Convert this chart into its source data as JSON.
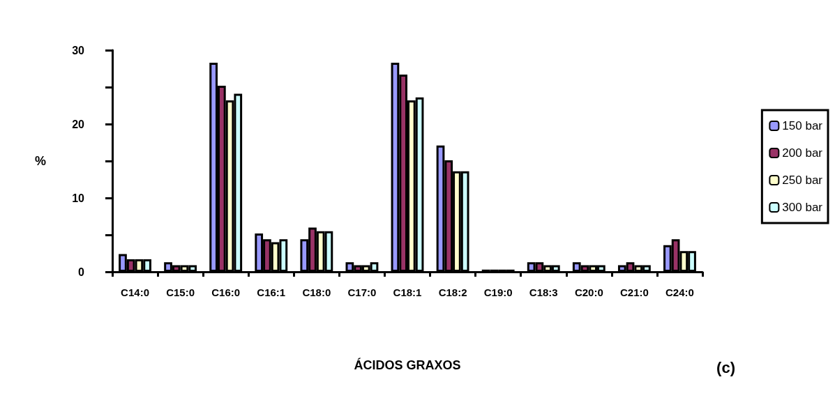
{
  "chart_data": {
    "type": "bar",
    "xlabel": "ÁCIDOS GRAXOS",
    "ylabel": "%",
    "annotations": [
      "(c)"
    ],
    "categories": [
      "C14:0",
      "C15:0",
      "C16:0",
      "C16:1",
      "C18:0",
      "C17:0",
      "C18:1",
      "C18:2",
      "C19:0",
      "C18:3",
      "C20:0",
      "C21:0",
      "C24:0"
    ],
    "series": [
      {
        "name": "150 bar",
        "color": "#9999ff",
        "values": [
          2.4,
          1.3,
          28.3,
          5.2,
          4.4,
          1.3,
          28.3,
          17.1,
          0.3,
          1.3,
          1.3,
          0.9,
          3.6
        ]
      },
      {
        "name": "200 bar",
        "color": "#993366",
        "values": [
          1.7,
          0.9,
          25.2,
          4.4,
          6.0,
          0.9,
          26.7,
          15.1,
          0.3,
          1.3,
          0.9,
          1.3,
          4.4
        ]
      },
      {
        "name": "250 bar",
        "color": "#ffffcc",
        "values": [
          1.7,
          0.9,
          23.2,
          4.0,
          5.5,
          0.9,
          23.2,
          13.6,
          0.3,
          0.9,
          0.9,
          0.9,
          2.8
        ]
      },
      {
        "name": "300 bar",
        "color": "#ccffff",
        "values": [
          1.7,
          0.9,
          24.1,
          4.4,
          5.5,
          1.3,
          23.6,
          13.6,
          0.3,
          0.9,
          0.9,
          0.9,
          2.8
        ]
      }
    ],
    "ylim": [
      0,
      30
    ],
    "yticks": [
      0,
      {
        "value": 5,
        "label": null
      },
      10,
      {
        "value": 15,
        "label": null
      },
      20,
      {
        "value": 25,
        "label": null
      },
      30
    ],
    "grid": false,
    "legend": "right"
  }
}
